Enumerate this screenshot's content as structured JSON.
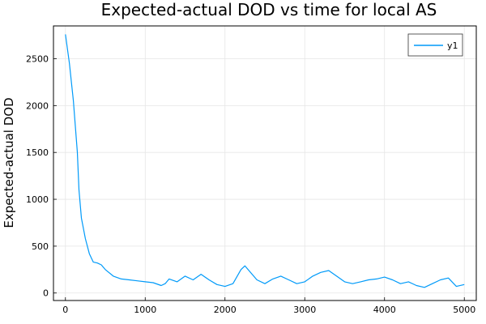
{
  "chart_data": {
    "type": "line",
    "title": "Expected-actual DOD vs time for local AS",
    "xlabel": "",
    "ylabel": "Expected-actual DOD",
    "xlim": [
      -150,
      5150
    ],
    "ylim": [
      -80,
      2850
    ],
    "x_ticks": [
      0,
      1000,
      2000,
      3000,
      4000,
      5000
    ],
    "x_tick_labels": [
      "0",
      "1000",
      "2000",
      "3000",
      "4000",
      "5000"
    ],
    "y_ticks": [
      0,
      500,
      1000,
      1500,
      2000,
      2500
    ],
    "y_tick_labels": [
      "0",
      "500",
      "1000",
      "1500",
      "2000",
      "2500"
    ],
    "grid": true,
    "legend_position": "top-right",
    "series": [
      {
        "name": "y1",
        "color": "#009af9",
        "x": [
          0,
          50,
          100,
          150,
          170,
          200,
          250,
          300,
          350,
          400,
          450,
          500,
          600,
          700,
          800,
          900,
          1000,
          1100,
          1200,
          1250,
          1300,
          1400,
          1500,
          1600,
          1700,
          1800,
          1900,
          2000,
          2100,
          2200,
          2250,
          2300,
          2400,
          2500,
          2600,
          2700,
          2800,
          2900,
          3000,
          3100,
          3200,
          3300,
          3400,
          3500,
          3600,
          3700,
          3800,
          3900,
          4000,
          4100,
          4200,
          4300,
          4400,
          4500,
          4600,
          4700,
          4800,
          4900,
          5000
        ],
        "y": [
          2760,
          2450,
          2050,
          1500,
          1100,
          800,
          580,
          420,
          330,
          320,
          300,
          250,
          180,
          150,
          140,
          130,
          120,
          110,
          80,
          100,
          150,
          120,
          180,
          140,
          200,
          140,
          90,
          70,
          100,
          250,
          290,
          240,
          140,
          100,
          150,
          180,
          140,
          100,
          120,
          180,
          220,
          240,
          180,
          120,
          100,
          120,
          140,
          150,
          170,
          140,
          100,
          120,
          80,
          60,
          100,
          140,
          160,
          70,
          90
        ]
      }
    ]
  }
}
